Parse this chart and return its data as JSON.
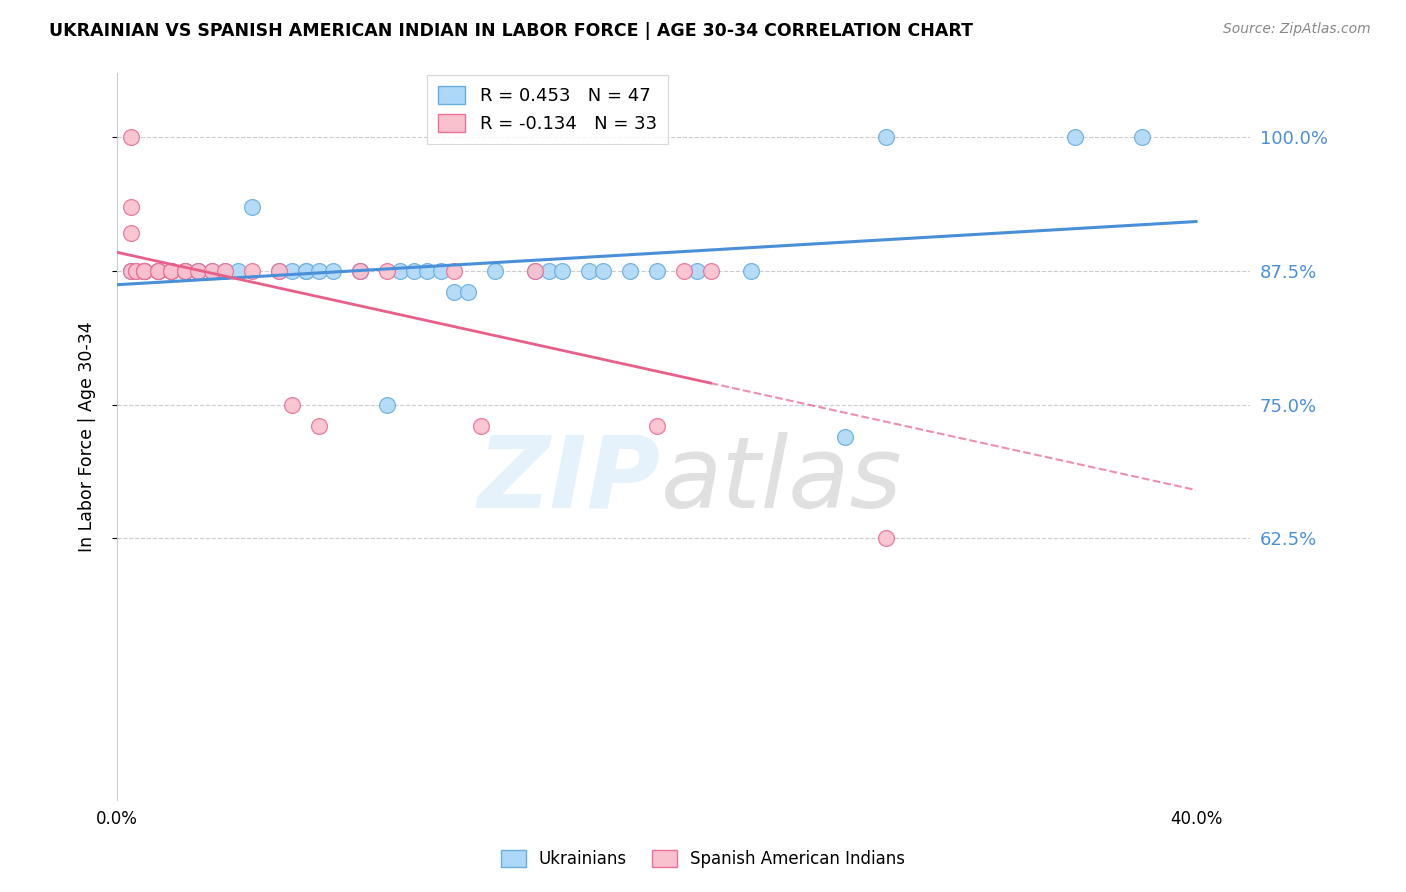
{
  "title": "UKRAINIAN VS SPANISH AMERICAN INDIAN IN LABOR FORCE | AGE 30-34 CORRELATION CHART",
  "source": "Source: ZipAtlas.com",
  "ylabel": "In Labor Force | Age 30-34",
  "xlim": [
    0.0,
    0.42
  ],
  "ylim": [
    0.38,
    1.06
  ],
  "yticks": [
    0.625,
    0.75,
    0.875,
    1.0
  ],
  "ytick_labels": [
    "62.5%",
    "75.0%",
    "87.5%",
    "100.0%"
  ],
  "xticks": [
    0.0,
    0.05,
    0.1,
    0.15,
    0.2,
    0.25,
    0.3,
    0.35,
    0.4
  ],
  "xtick_labels": [
    "0.0%",
    "",
    "",
    "",
    "",
    "",
    "",
    "",
    "40.0%"
  ],
  "blue_R": 0.453,
  "blue_N": 47,
  "pink_R": -0.134,
  "pink_N": 33,
  "blue_color": "#ADD8F7",
  "pink_color": "#F9C0CE",
  "blue_edge_color": "#6AAEE0",
  "pink_edge_color": "#E87099",
  "blue_line_color": "#4A90D9",
  "pink_line_color": "#E8608A",
  "grid_color": "#CCCCCC",
  "blue_scatter_x": [
    0.005,
    0.005,
    0.01,
    0.01,
    0.01,
    0.01,
    0.015,
    0.015,
    0.02,
    0.02,
    0.025,
    0.025,
    0.03,
    0.03,
    0.035,
    0.04,
    0.045,
    0.05,
    0.06,
    0.065,
    0.07,
    0.07,
    0.075,
    0.08,
    0.09,
    0.09,
    0.1,
    0.105,
    0.11,
    0.115,
    0.12,
    0.125,
    0.13,
    0.14,
    0.155,
    0.16,
    0.165,
    0.175,
    0.18,
    0.19,
    0.2,
    0.215,
    0.235,
    0.27,
    0.285,
    0.355,
    0.38
  ],
  "blue_scatter_y": [
    0.875,
    0.875,
    0.875,
    0.875,
    0.875,
    0.875,
    0.875,
    0.875,
    0.875,
    0.875,
    0.875,
    0.875,
    0.875,
    0.875,
    0.875,
    0.875,
    0.875,
    0.935,
    0.875,
    0.875,
    0.875,
    0.875,
    0.875,
    0.875,
    0.875,
    0.875,
    0.75,
    0.875,
    0.875,
    0.875,
    0.875,
    0.855,
    0.855,
    0.875,
    0.875,
    0.875,
    0.875,
    0.875,
    0.875,
    0.875,
    0.875,
    0.875,
    0.875,
    0.72,
    1.0,
    1.0,
    1.0
  ],
  "pink_scatter_x": [
    0.005,
    0.005,
    0.005,
    0.005,
    0.007,
    0.007,
    0.01,
    0.01,
    0.01,
    0.01,
    0.015,
    0.015,
    0.02,
    0.02,
    0.02,
    0.025,
    0.025,
    0.03,
    0.035,
    0.04,
    0.05,
    0.06,
    0.065,
    0.075,
    0.09,
    0.1,
    0.125,
    0.135,
    0.155,
    0.2,
    0.21,
    0.22,
    0.285
  ],
  "pink_scatter_y": [
    1.0,
    0.935,
    0.91,
    0.875,
    0.875,
    0.875,
    0.875,
    0.875,
    0.875,
    0.875,
    0.875,
    0.875,
    0.875,
    0.875,
    0.875,
    0.875,
    0.875,
    0.875,
    0.875,
    0.875,
    0.875,
    0.875,
    0.75,
    0.73,
    0.875,
    0.875,
    0.875,
    0.73,
    0.875,
    0.73,
    0.875,
    0.875,
    0.625
  ]
}
